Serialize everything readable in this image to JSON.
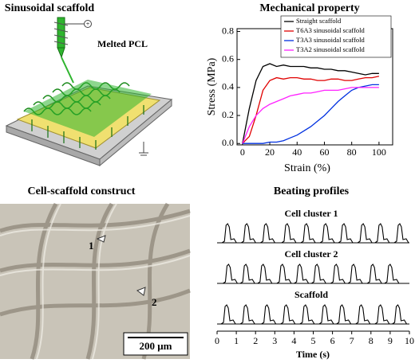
{
  "panels": {
    "scaffold": {
      "title": "Sinusoidal scaffold",
      "label": "Melted PCL"
    },
    "construct": {
      "title": "Cell-scaffold construct",
      "markers": [
        "1",
        "2"
      ],
      "scale_bar": "200 μm"
    }
  },
  "chart_data": [
    {
      "type": "line",
      "title": "Mechanical property",
      "xlabel": "Strain (%)",
      "ylabel": "Stress (MPa)",
      "x": [
        0,
        5,
        10,
        15,
        20,
        25,
        30,
        35,
        40,
        45,
        50,
        55,
        60,
        65,
        70,
        75,
        80,
        85,
        90,
        95,
        100
      ],
      "series": [
        {
          "name": "Straight scaffold",
          "color": "#000000",
          "values": [
            0,
            0.25,
            0.45,
            0.55,
            0.57,
            0.55,
            0.56,
            0.55,
            0.55,
            0.55,
            0.54,
            0.54,
            0.53,
            0.53,
            0.52,
            0.52,
            0.51,
            0.5,
            0.49,
            0.5,
            0.5
          ]
        },
        {
          "name": "T6A3 sinusoidal scaffold",
          "color": "#e00000",
          "values": [
            0,
            0.05,
            0.2,
            0.38,
            0.45,
            0.47,
            0.46,
            0.47,
            0.47,
            0.46,
            0.46,
            0.45,
            0.45,
            0.46,
            0.46,
            0.45,
            0.45,
            0.46,
            0.47,
            0.47,
            0.48
          ]
        },
        {
          "name": "T3A3 sinusoidal scaffold",
          "color": "#0030e0",
          "values": [
            0,
            0,
            0,
            0,
            0.01,
            0.01,
            0.02,
            0.04,
            0.06,
            0.09,
            0.12,
            0.16,
            0.2,
            0.25,
            0.3,
            0.34,
            0.38,
            0.4,
            0.41,
            0.42,
            0.42
          ]
        },
        {
          "name": "T3A2 sinusoidal scaffold",
          "color": "#ff20ff",
          "values": [
            0,
            0.12,
            0.2,
            0.25,
            0.28,
            0.3,
            0.32,
            0.34,
            0.35,
            0.36,
            0.36,
            0.37,
            0.38,
            0.38,
            0.38,
            0.39,
            0.4,
            0.4,
            0.4,
            0.4,
            0.4
          ]
        }
      ],
      "xlim": [
        -4,
        110
      ],
      "ylim": [
        -0.01,
        0.82
      ],
      "xticks": [
        0,
        20,
        40,
        60,
        80,
        100
      ],
      "yticks": [
        {
          "value": 0,
          "label": "0.0"
        },
        0.2,
        0.4,
        0.6,
        0.8
      ],
      "legend": "upper right"
    },
    {
      "type": "trace",
      "title": "Beating profiles",
      "xlabel": "Time (s)",
      "color": "#000000",
      "xlim": [
        0,
        10
      ],
      "xticks": [
        0,
        1,
        2,
        3,
        4,
        5,
        6,
        7,
        8,
        9,
        10
      ],
      "series": [
        {
          "name": "Cell cluster 1",
          "peaks": [
            0.55,
            1.55,
            2.55,
            3.65,
            4.65,
            5.65,
            6.6,
            7.6,
            8.5,
            9.5
          ]
        },
        {
          "name": "Cell cluster 2",
          "peaks": [
            0.6,
            1.5,
            2.4,
            3.4,
            4.3,
            5.2,
            6.2,
            7.1,
            8.1,
            9.0
          ]
        },
        {
          "name": "Scaffold",
          "peaks": [
            0.5,
            1.5,
            2.6,
            3.6,
            4.6,
            5.6,
            6.5,
            7.5,
            8.5,
            9.4
          ]
        }
      ]
    }
  ]
}
